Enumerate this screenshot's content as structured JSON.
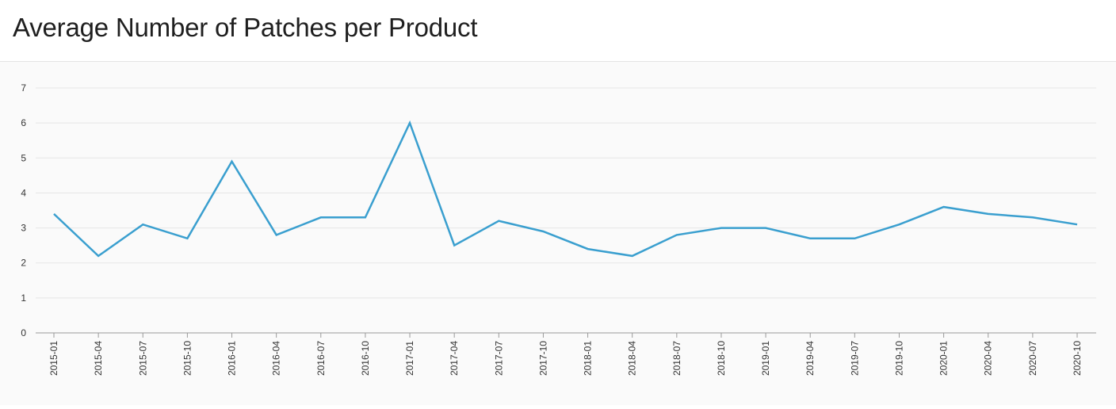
{
  "title": "Average Number of Patches per Product",
  "chart_data": {
    "type": "line",
    "title": "Average Number of Patches per Product",
    "xlabel": "",
    "ylabel": "",
    "ylim": [
      0,
      7
    ],
    "yticks": [
      "0",
      "1",
      "2",
      "3",
      "4",
      "5",
      "6",
      "7"
    ],
    "grid": true,
    "categories": [
      "2015-01",
      "2015-04",
      "2015-07",
      "2015-10",
      "2016-01",
      "2016-04",
      "2016-07",
      "2016-10",
      "2017-01",
      "2017-04",
      "2017-07",
      "2017-10",
      "2018-01",
      "2018-04",
      "2018-07",
      "2018-10",
      "2019-01",
      "2019-04",
      "2019-07",
      "2019-10",
      "2020-01",
      "2020-04",
      "2020-07",
      "2020-10"
    ],
    "series": [
      {
        "values": [
          3.4,
          2.2,
          3.1,
          2.7,
          4.9,
          2.8,
          3.3,
          3.3,
          6.0,
          2.5,
          3.2,
          2.9,
          2.4,
          2.2,
          2.8,
          3.0,
          3.0,
          2.7,
          2.7,
          3.1,
          3.6,
          3.4,
          3.3,
          3.1
        ],
        "color": "#3a9fcf"
      }
    ],
    "colors": {
      "gridline": "#e6e6e6",
      "axis": "#9a9a9a",
      "tick_text": "#333333"
    }
  }
}
